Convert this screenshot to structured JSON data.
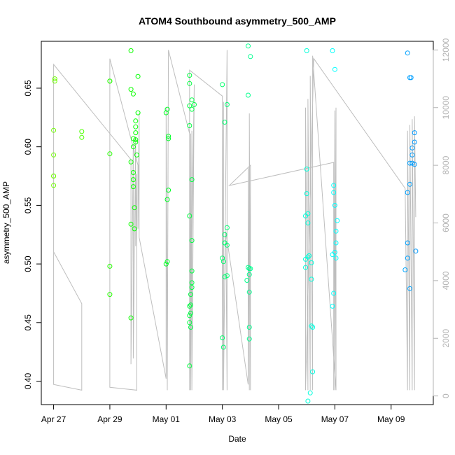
{
  "chart_data": {
    "type": "scatter",
    "title": "ATOM4 Southbound asymmetry_500_AMP",
    "xlabel": "Date",
    "ylabel": "asymmetry_500_AMP",
    "x_ticks": [
      "Apr 27",
      "Apr 29",
      "May 01",
      "May 03",
      "May 05",
      "May 07",
      "May 09"
    ],
    "y_ticks": [
      "0.40",
      "0.45",
      "0.50",
      "0.55",
      "0.60",
      "0.65"
    ],
    "y2_ticks": [
      "0",
      "2000",
      "4000",
      "6000",
      "8000",
      "10000",
      "12000"
    ],
    "xlim": [
      "2021-04-26T13:30",
      "2021-05-10T12:00"
    ],
    "ylim": [
      0.38,
      0.69
    ],
    "y2lim": [
      -300,
      12300
    ],
    "grid": false,
    "legend": "none",
    "colors": {
      "line": "#bebebe",
      "right_axis": "#b3b3b3",
      "point_start": "#7fff00",
      "point_end": "#1e90ff"
    },
    "points": [
      {
        "x": "2021-04-27T00:00",
        "y": 0.567
      },
      {
        "x": "2021-04-27T00:00",
        "y": 0.575
      },
      {
        "x": "2021-04-27T00:00",
        "y": 0.575
      },
      {
        "x": "2021-04-27T00:00",
        "y": 0.593
      },
      {
        "x": "2021-04-27T00:00",
        "y": 0.614
      },
      {
        "x": "2021-04-27T01:00",
        "y": 0.656
      },
      {
        "x": "2021-04-27T01:00",
        "y": 0.658
      },
      {
        "x": "2021-04-28T00:00",
        "y": 0.613
      },
      {
        "x": "2021-04-28T00:00",
        "y": 0.608
      },
      {
        "x": "2021-04-29T00:00",
        "y": 0.656
      },
      {
        "x": "2021-04-29T00:00",
        "y": 0.656
      },
      {
        "x": "2021-04-29T00:00",
        "y": 0.594
      },
      {
        "x": "2021-04-29T00:00",
        "y": 0.498
      },
      {
        "x": "2021-04-29T00:00",
        "y": 0.474
      },
      {
        "x": "2021-04-29T18:00",
        "y": 0.682
      },
      {
        "x": "2021-04-29T18:00",
        "y": 0.649
      },
      {
        "x": "2021-04-29T20:00",
        "y": 0.645
      },
      {
        "x": "2021-04-29T18:00",
        "y": 0.587
      },
      {
        "x": "2021-04-29T18:00",
        "y": 0.534
      },
      {
        "x": "2021-04-29T18:00",
        "y": 0.454
      },
      {
        "x": "2021-04-29T20:00",
        "y": 0.607
      },
      {
        "x": "2021-04-29T20:00",
        "y": 0.6
      },
      {
        "x": "2021-04-29T20:00",
        "y": 0.578
      },
      {
        "x": "2021-04-29T20:00",
        "y": 0.572
      },
      {
        "x": "2021-04-29T20:00",
        "y": 0.566
      },
      {
        "x": "2021-04-29T21:00",
        "y": 0.53
      },
      {
        "x": "2021-04-29T21:00",
        "y": 0.548
      },
      {
        "x": "2021-04-29T22:00",
        "y": 0.622
      },
      {
        "x": "2021-04-29T22:00",
        "y": 0.617
      },
      {
        "x": "2021-04-29T22:00",
        "y": 0.612
      },
      {
        "x": "2021-04-29T22:00",
        "y": 0.606
      },
      {
        "x": "2021-04-29T22:00",
        "y": 0.604
      },
      {
        "x": "2021-04-29T23:00",
        "y": 0.593
      },
      {
        "x": "2021-04-30T00:00",
        "y": 0.629
      },
      {
        "x": "2021-04-30T00:00",
        "y": 0.66
      },
      {
        "x": "2021-05-01T00:00",
        "y": 0.629
      },
      {
        "x": "2021-05-01T01:00",
        "y": 0.632
      },
      {
        "x": "2021-05-01T02:00",
        "y": 0.609
      },
      {
        "x": "2021-05-01T02:00",
        "y": 0.607
      },
      {
        "x": "2021-05-01T02:00",
        "y": 0.563
      },
      {
        "x": "2021-05-01T01:00",
        "y": 0.555
      },
      {
        "x": "2021-05-01T00:00",
        "y": 0.5
      },
      {
        "x": "2021-05-01T01:00",
        "y": 0.502
      },
      {
        "x": "2021-05-01T20:00",
        "y": 0.661
      },
      {
        "x": "2021-05-01T20:00",
        "y": 0.654
      },
      {
        "x": "2021-05-01T22:00",
        "y": 0.64
      },
      {
        "x": "2021-05-01T20:00",
        "y": 0.635
      },
      {
        "x": "2021-05-01T22:00",
        "y": 0.632
      },
      {
        "x": "2021-05-02T00:00",
        "y": 0.636
      },
      {
        "x": "2021-05-01T20:00",
        "y": 0.618
      },
      {
        "x": "2021-05-01T22:00",
        "y": 0.572
      },
      {
        "x": "2021-05-01T20:00",
        "y": 0.541
      },
      {
        "x": "2021-05-01T22:00",
        "y": 0.52
      },
      {
        "x": "2021-05-01T22:00",
        "y": 0.494
      },
      {
        "x": "2021-05-01T22:00",
        "y": 0.484
      },
      {
        "x": "2021-05-01T22:00",
        "y": 0.48
      },
      {
        "x": "2021-05-01T21:00",
        "y": 0.474
      },
      {
        "x": "2021-05-01T21:00",
        "y": 0.465
      },
      {
        "x": "2021-05-01T20:00",
        "y": 0.464
      },
      {
        "x": "2021-05-01T21:00",
        "y": 0.458
      },
      {
        "x": "2021-05-01T20:00",
        "y": 0.456
      },
      {
        "x": "2021-05-01T20:00",
        "y": 0.45
      },
      {
        "x": "2021-05-01T21:00",
        "y": 0.446
      },
      {
        "x": "2021-05-01T20:00",
        "y": 0.413
      },
      {
        "x": "2021-05-03T00:00",
        "y": 0.653
      },
      {
        "x": "2021-05-03T04:00",
        "y": 0.636
      },
      {
        "x": "2021-05-03T02:00",
        "y": 0.621
      },
      {
        "x": "2021-05-03T04:00",
        "y": 0.531
      },
      {
        "x": "2021-05-03T02:00",
        "y": 0.525
      },
      {
        "x": "2021-05-03T02:00",
        "y": 0.518
      },
      {
        "x": "2021-05-03T04:00",
        "y": 0.516
      },
      {
        "x": "2021-05-03T02:00",
        "y": 0.518
      },
      {
        "x": "2021-05-03T00:00",
        "y": 0.505
      },
      {
        "x": "2021-05-03T01:00",
        "y": 0.502
      },
      {
        "x": "2021-05-03T04:00",
        "y": 0.49
      },
      {
        "x": "2021-05-03T02:00",
        "y": 0.489
      },
      {
        "x": "2021-05-03T00:00",
        "y": 0.437
      },
      {
        "x": "2021-05-03T01:00",
        "y": 0.429
      },
      {
        "x": "2021-05-03T22:00",
        "y": 0.686
      },
      {
        "x": "2021-05-04T00:00",
        "y": 0.677
      },
      {
        "x": "2021-05-03T22:00",
        "y": 0.644
      },
      {
        "x": "2021-05-03T22:00",
        "y": 0.497
      },
      {
        "x": "2021-05-03T23:00",
        "y": 0.496
      },
      {
        "x": "2021-05-04T00:00",
        "y": 0.496
      },
      {
        "x": "2021-05-03T23:00",
        "y": 0.491
      },
      {
        "x": "2021-05-03T21:00",
        "y": 0.486
      },
      {
        "x": "2021-05-03T23:00",
        "y": 0.476
      },
      {
        "x": "2021-05-03T23:00",
        "y": 0.446
      },
      {
        "x": "2021-05-03T23:00",
        "y": 0.436
      },
      {
        "x": "2021-05-06T00:00",
        "y": 0.682
      },
      {
        "x": "2021-05-06T00:00",
        "y": 0.581
      },
      {
        "x": "2021-05-06T00:00",
        "y": 0.56
      },
      {
        "x": "2021-05-06T01:00",
        "y": 0.543
      },
      {
        "x": "2021-05-05T23:00",
        "y": 0.541
      },
      {
        "x": "2021-05-06T01:00",
        "y": 0.535
      },
      {
        "x": "2021-05-06T02:00",
        "y": 0.507
      },
      {
        "x": "2021-05-06T01:00",
        "y": 0.506
      },
      {
        "x": "2021-05-05T23:00",
        "y": 0.504
      },
      {
        "x": "2021-05-06T04:00",
        "y": 0.501
      },
      {
        "x": "2021-05-05T23:00",
        "y": 0.497
      },
      {
        "x": "2021-05-06T04:00",
        "y": 0.487
      },
      {
        "x": "2021-05-06T04:00",
        "y": 0.447
      },
      {
        "x": "2021-05-06T05:00",
        "y": 0.446
      },
      {
        "x": "2021-05-06T05:00",
        "y": 0.408
      },
      {
        "x": "2021-05-06T03:00",
        "y": 0.39
      },
      {
        "x": "2021-05-06T01:00",
        "y": 0.383
      },
      {
        "x": "2021-05-06T22:00",
        "y": 0.682
      },
      {
        "x": "2021-05-07T00:00",
        "y": 0.666
      },
      {
        "x": "2021-05-06T23:00",
        "y": 0.567
      },
      {
        "x": "2021-05-06T23:00",
        "y": 0.561
      },
      {
        "x": "2021-05-07T00:00",
        "y": 0.55
      },
      {
        "x": "2021-05-07T02:00",
        "y": 0.537
      },
      {
        "x": "2021-05-07T01:00",
        "y": 0.528
      },
      {
        "x": "2021-05-07T01:00",
        "y": 0.518
      },
      {
        "x": "2021-05-07T00:00",
        "y": 0.51
      },
      {
        "x": "2021-05-06T22:00",
        "y": 0.508
      },
      {
        "x": "2021-05-07T01:00",
        "y": 0.505
      },
      {
        "x": "2021-05-06T23:00",
        "y": 0.475
      },
      {
        "x": "2021-05-06T22:00",
        "y": 0.464
      },
      {
        "x": "2021-05-09T14:00",
        "y": 0.68
      },
      {
        "x": "2021-05-09T16:00",
        "y": 0.659
      },
      {
        "x": "2021-05-09T17:00",
        "y": 0.659
      },
      {
        "x": "2021-05-09T20:00",
        "y": 0.612
      },
      {
        "x": "2021-05-09T20:00",
        "y": 0.604
      },
      {
        "x": "2021-05-09T18:00",
        "y": 0.599
      },
      {
        "x": "2021-05-09T18:00",
        "y": 0.593
      },
      {
        "x": "2021-05-09T16:00",
        "y": 0.586
      },
      {
        "x": "2021-05-09T18:00",
        "y": 0.586
      },
      {
        "x": "2021-05-09T20:00",
        "y": 0.585
      },
      {
        "x": "2021-05-09T16:00",
        "y": 0.568
      },
      {
        "x": "2021-05-09T14:00",
        "y": 0.561
      },
      {
        "x": "2021-05-09T14:00",
        "y": 0.518
      },
      {
        "x": "2021-05-09T21:00",
        "y": 0.511
      },
      {
        "x": "2021-05-09T14:00",
        "y": 0.505
      },
      {
        "x": "2021-05-09T12:00",
        "y": 0.495
      },
      {
        "x": "2021-05-09T16:00",
        "y": 0.479
      }
    ],
    "line_series": [
      {
        "x": "2021-04-27T00:00",
        "y2": 5200
      },
      {
        "x": "2021-04-27T00:00",
        "y2": 400
      },
      {
        "x": "2021-04-27T00:00",
        "y2": 5000
      },
      {
        "x": "2021-04-28T00:00",
        "y2": 3200
      },
      {
        "x": "2021-04-28T00:00",
        "y2": 200
      },
      {
        "x": "2021-04-27T00:00",
        "y2": 400
      },
      {
        "x": "2021-04-27T00:00",
        "y2": 11500
      },
      {
        "x": "2021-04-29T18:00",
        "y2": 8200
      },
      {
        "x": "2021-04-29T18:00",
        "y2": 1100
      },
      {
        "x": "2021-04-29T20:00",
        "y2": 8700
      },
      {
        "x": "2021-04-29T20:00",
        "y2": 1300
      },
      {
        "x": "2021-04-29T22:00",
        "y2": 9000
      },
      {
        "x": "2021-04-29T22:00",
        "y2": 5200
      },
      {
        "x": "2021-04-29T23:00",
        "y2": 7700
      },
      {
        "x": "2021-04-29T23:00",
        "y2": 200
      },
      {
        "x": "2021-04-29T00:00",
        "y2": 300
      },
      {
        "x": "2021-04-29T00:00",
        "y2": 11700
      },
      {
        "x": "2021-04-30T00:00",
        "y2": 8000
      },
      {
        "x": "2021-04-30T00:00",
        "y2": 5800
      },
      {
        "x": "2021-04-30T01:00",
        "y2": 9800
      },
      {
        "x": "2021-04-30T01:00",
        "y2": 5500
      },
      {
        "x": "2021-05-01T00:00",
        "y2": 600
      },
      {
        "x": "2021-05-01T00:00",
        "y2": 10000
      },
      {
        "x": "2021-05-01T01:00",
        "y2": 200
      },
      {
        "x": "2021-05-01T02:00",
        "y2": 12000
      },
      {
        "x": "2021-05-01T20:00",
        "y2": 9100
      },
      {
        "x": "2021-05-01T20:00",
        "y2": 200
      },
      {
        "x": "2021-05-01T21:00",
        "y2": 9100
      },
      {
        "x": "2021-05-01T21:00",
        "y2": 200
      },
      {
        "x": "2021-05-01T22:00",
        "y2": 9200
      },
      {
        "x": "2021-05-01T22:00",
        "y2": 200
      },
      {
        "x": "2021-05-02T00:00",
        "y2": 10800
      },
      {
        "x": "2021-05-01T20:00",
        "y2": 400
      },
      {
        "x": "2021-05-01T20:00",
        "y2": 11300
      },
      {
        "x": "2021-05-03T00:00",
        "y2": 10400
      },
      {
        "x": "2021-05-03T00:00",
        "y2": 200
      },
      {
        "x": "2021-05-03T01:00",
        "y2": 10200
      },
      {
        "x": "2021-05-03T01:00",
        "y2": 200
      },
      {
        "x": "2021-05-03T04:00",
        "y2": 12000
      },
      {
        "x": "2021-05-03T04:00",
        "y2": 200
      },
      {
        "x": "2021-05-03T03:00",
        "y2": 5700
      },
      {
        "x": "2021-05-03T22:00",
        "y2": 400
      },
      {
        "x": "2021-05-03T22:00",
        "y2": 7900
      },
      {
        "x": "2021-05-03T23:00",
        "y2": 200
      },
      {
        "x": "2021-05-03T23:00",
        "y2": 9800
      },
      {
        "x": "2021-05-04T00:00",
        "y2": 200
      },
      {
        "x": "2021-05-04T00:00",
        "y2": 8000
      },
      {
        "x": "2021-05-03T06:00",
        "y2": 7300
      },
      {
        "x": "2021-05-06T23:00",
        "y2": 8100
      },
      {
        "x": "2021-05-06T23:00",
        "y2": 200
      },
      {
        "x": "2021-05-07T00:00",
        "y2": 9900
      },
      {
        "x": "2021-05-07T00:00",
        "y2": 200
      },
      {
        "x": "2021-05-07T01:00",
        "y2": 10000
      },
      {
        "x": "2021-05-07T01:00",
        "y2": 200
      },
      {
        "x": "2021-05-06T05:00",
        "y2": 11800
      },
      {
        "x": "2021-05-06T05:00",
        "y2": 200
      },
      {
        "x": "2021-05-06T03:00",
        "y2": 11100
      },
      {
        "x": "2021-05-06T03:00",
        "y2": 200
      },
      {
        "x": "2021-05-06T01:00",
        "y2": 10300
      },
      {
        "x": "2021-05-06T01:00",
        "y2": 200
      },
      {
        "x": "2021-05-05T23:00",
        "y2": 10000
      },
      {
        "x": "2021-05-05T23:00",
        "y2": 200
      },
      {
        "x": "2021-05-06T06:00",
        "y2": 11700
      },
      {
        "x": "2021-05-09T12:00",
        "y2": 7200
      },
      {
        "x": "2021-05-09T14:00",
        "y2": 200
      },
      {
        "x": "2021-05-09T14:00",
        "y2": 9200
      },
      {
        "x": "2021-05-09T16:00",
        "y2": 200
      },
      {
        "x": "2021-05-09T16:00",
        "y2": 9400
      },
      {
        "x": "2021-05-09T18:00",
        "y2": 200
      },
      {
        "x": "2021-05-09T18:00",
        "y2": 9600
      },
      {
        "x": "2021-05-09T20:00",
        "y2": 200
      },
      {
        "x": "2021-05-09T20:00",
        "y2": 9700
      },
      {
        "x": "2021-05-09T21:00",
        "y2": 6200
      }
    ]
  }
}
